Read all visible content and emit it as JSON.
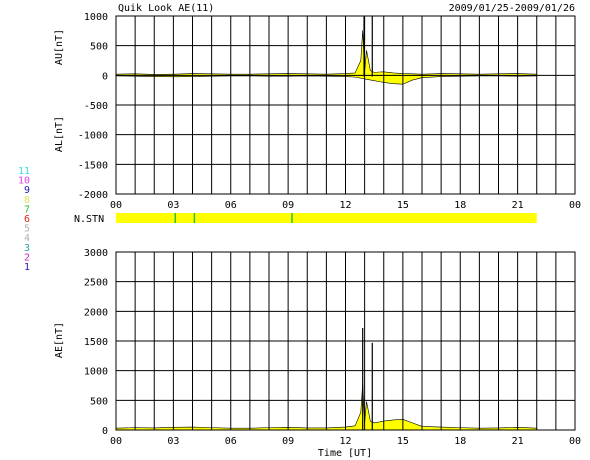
{
  "header": {
    "title": "Quik Look AE(11)",
    "date_range": "2009/01/25-2009/01/26"
  },
  "station_legend": [
    {
      "label": "11",
      "color": "#33e0e0"
    },
    {
      "label": "10",
      "color": "#e040e0"
    },
    {
      "label": "9",
      "color": "#2020c0"
    },
    {
      "label": "8",
      "color": "#e0e060"
    },
    {
      "label": "7",
      "color": "#30c030"
    },
    {
      "label": "6",
      "color": "#e02020"
    },
    {
      "label": "5",
      "color": "#b0b0b0"
    },
    {
      "label": "4",
      "color": "#b0b0b0"
    },
    {
      "label": "3",
      "color": "#30a0a0"
    },
    {
      "label": "2",
      "color": "#c030c0"
    },
    {
      "label": "1",
      "color": "#2020b0"
    }
  ],
  "nstn": {
    "label": "N.STN",
    "bar_color": "#ffff00",
    "marks_hours": [
      3.1,
      4.1,
      9.2
    ],
    "mark_color": "#30c030",
    "end_hour": 22
  },
  "chart_data": [
    {
      "type": "area",
      "ylabel_top": "AU[nT]",
      "ylabel_bottom": "AL[nT]",
      "x_ticks": [
        "00",
        "03",
        "06",
        "09",
        "12",
        "15",
        "18",
        "21",
        "00"
      ],
      "xlim": [
        0,
        24
      ],
      "ylim": [
        -2000,
        1000
      ],
      "y_ticks": [
        1000,
        500,
        0,
        -500,
        -1000,
        -1500,
        -2000
      ],
      "fill_color": "#ffff00",
      "series": [
        {
          "x": [
            0,
            1,
            2,
            3,
            4,
            5,
            6,
            7,
            8,
            9,
            10,
            11,
            12,
            12.5,
            12.8,
            12.9,
            13.0,
            13.1,
            13.3,
            13.5,
            14,
            14.5,
            15,
            15.5,
            16,
            17,
            18,
            19,
            20,
            21,
            22
          ],
          "values": [
            20,
            25,
            15,
            20,
            30,
            25,
            20,
            20,
            25,
            30,
            25,
            20,
            30,
            40,
            250,
            760,
            60,
            420,
            80,
            50,
            60,
            40,
            30,
            25,
            20,
            30,
            25,
            20,
            25,
            30,
            20
          ]
        },
        {
          "x": [
            0,
            1,
            2,
            3,
            4,
            5,
            6,
            7,
            8,
            9,
            10,
            11,
            12,
            12.5,
            13,
            13.5,
            14,
            14.5,
            15,
            15.5,
            16,
            17,
            18,
            19,
            20,
            21,
            22
          ],
          "values": [
            -10,
            -15,
            -20,
            -25,
            -20,
            -15,
            -10,
            -10,
            -15,
            -15,
            -10,
            -15,
            -20,
            -30,
            -60,
            -90,
            -120,
            -140,
            -150,
            -80,
            -40,
            -20,
            -15,
            -10,
            -10,
            -15,
            -10
          ]
        }
      ],
      "spikes": [
        {
          "x": 13.4,
          "y_max": 1000,
          "y_min": -20
        },
        {
          "x": 12.97,
          "y_max": 1000,
          "y_min": -20
        }
      ]
    },
    {
      "type": "area",
      "ylabel": "AE[nT]",
      "xlabel": "Time [UT]",
      "x_ticks": [
        "00",
        "03",
        "06",
        "09",
        "12",
        "15",
        "18",
        "21",
        "00"
      ],
      "xlim": [
        0,
        24
      ],
      "ylim": [
        0,
        3000
      ],
      "y_ticks": [
        3000,
        2500,
        2000,
        1500,
        1000,
        500,
        0
      ],
      "fill_color": "#ffff00",
      "series": [
        {
          "x": [
            0,
            1,
            2,
            3,
            4,
            5,
            6,
            7,
            8,
            9,
            10,
            11,
            12,
            12.5,
            12.8,
            12.9,
            13.0,
            13.1,
            13.3,
            13.5,
            14,
            14.5,
            15,
            15.5,
            16,
            17,
            18,
            19,
            20,
            21,
            22
          ],
          "values": [
            30,
            40,
            35,
            45,
            50,
            40,
            30,
            30,
            40,
            45,
            35,
            35,
            50,
            70,
            300,
            800,
            120,
            480,
            150,
            120,
            150,
            170,
            180,
            120,
            60,
            50,
            40,
            30,
            35,
            45,
            30
          ]
        }
      ],
      "spikes": [
        {
          "x": 12.9,
          "y_max": 1720,
          "y_min": 0
        },
        {
          "x": 13.4,
          "y_max": 1470,
          "y_min": 0
        }
      ]
    }
  ]
}
